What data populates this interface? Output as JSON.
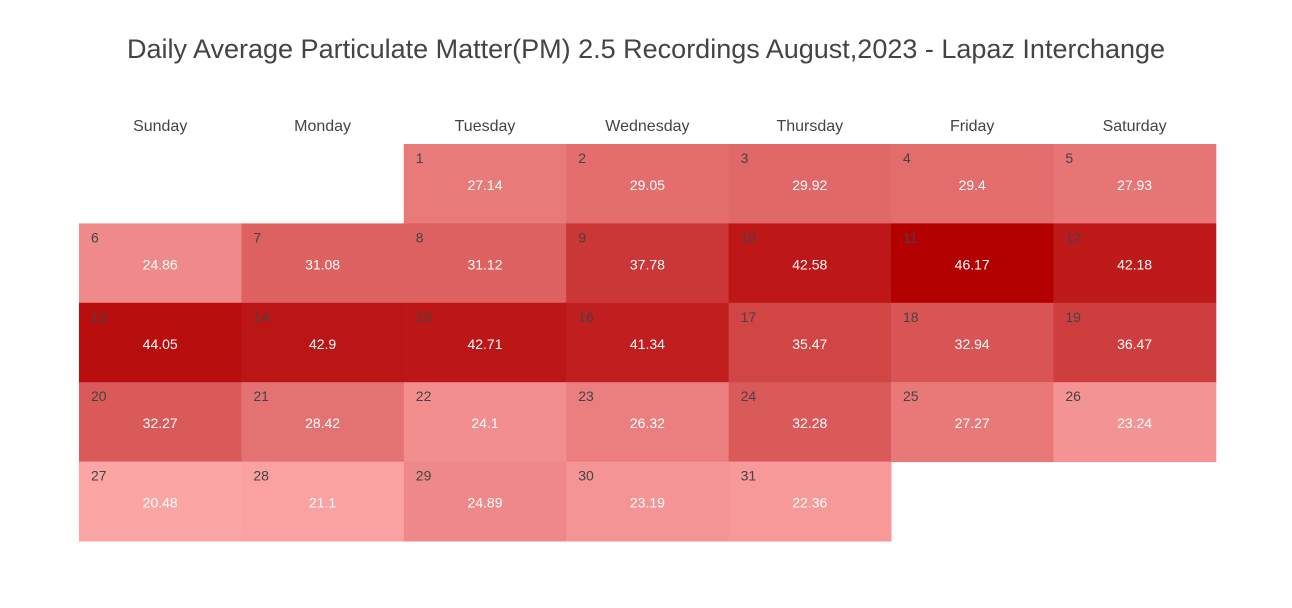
{
  "chart_data": {
    "type": "heatmap",
    "title": "Daily Average Particulate Matter(PM) 2.5 Recordings August,2023 - Lapaz Interchange",
    "weekdays": [
      "Sunday",
      "Monday",
      "Tuesday",
      "Wednesday",
      "Thursday",
      "Friday",
      "Saturday"
    ],
    "first_weekday_index": 2,
    "days": [
      1,
      2,
      3,
      4,
      5,
      6,
      7,
      8,
      9,
      10,
      11,
      12,
      13,
      14,
      15,
      16,
      17,
      18,
      19,
      20,
      21,
      22,
      23,
      24,
      25,
      26,
      27,
      28,
      29,
      30,
      31
    ],
    "values": [
      27.14,
      29.05,
      29.92,
      29.4,
      27.93,
      24.86,
      31.08,
      31.12,
      37.78,
      42.58,
      46.17,
      42.18,
      44.05,
      42.9,
      42.71,
      41.34,
      35.47,
      32.94,
      36.47,
      32.27,
      28.42,
      24.1,
      26.32,
      32.28,
      27.27,
      23.24,
      20.48,
      21.1,
      24.89,
      23.19,
      22.36
    ],
    "color_scale": {
      "low": "#fca5a5",
      "high": "#b30000"
    },
    "legend": "none"
  }
}
